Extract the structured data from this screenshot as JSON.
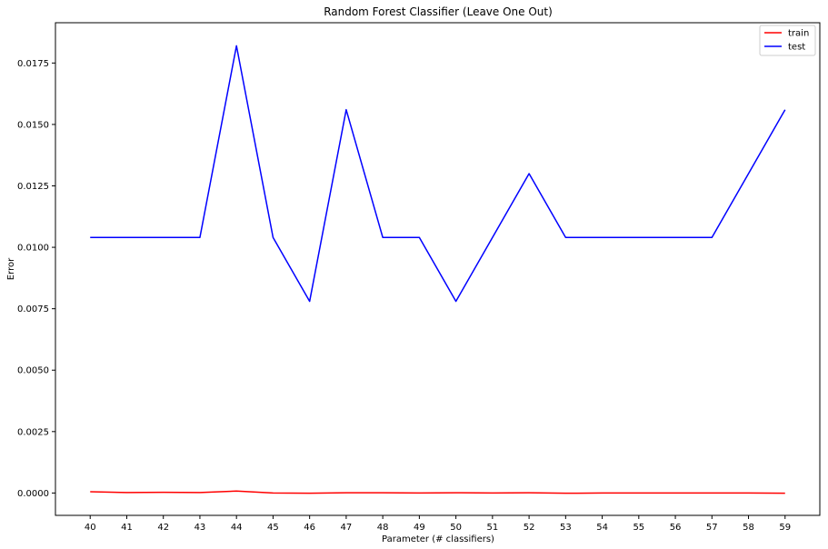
{
  "chart_data": {
    "type": "line",
    "title": "Random Forest Classifier (Leave One Out)",
    "xlabel": "Parameter (# classifiers)",
    "ylabel": "Error",
    "x": [
      40,
      41,
      42,
      43,
      44,
      45,
      46,
      47,
      48,
      49,
      50,
      51,
      52,
      53,
      54,
      55,
      56,
      57,
      58,
      59
    ],
    "xticks": [
      "40",
      "41",
      "42",
      "43",
      "44",
      "45",
      "46",
      "47",
      "48",
      "49",
      "50",
      "51",
      "52",
      "53",
      "54",
      "55",
      "56",
      "57",
      "58",
      "59"
    ],
    "yticks": [
      "0.0000",
      "0.0025",
      "0.0050",
      "0.0075",
      "0.0100",
      "0.0125",
      "0.0150",
      "0.0175"
    ],
    "ytick_values": [
      0,
      0.0025,
      0.005,
      0.0075,
      0.01,
      0.0125,
      0.015,
      0.0175
    ],
    "xlim": [
      39.05,
      59.95
    ],
    "ylim": [
      -0.00091,
      0.01914
    ],
    "grid": false,
    "legend_position": "top-right",
    "series": [
      {
        "name": "train",
        "color": "#ff0000",
        "values": [
          5e-05,
          2e-05,
          3e-05,
          2e-05,
          8e-05,
          0.0,
          -1e-05,
          1e-05,
          1e-05,
          0.0,
          1e-05,
          0.0,
          1e-05,
          -1e-05,
          0.0,
          0.0,
          0.0,
          0.0,
          0.0,
          -1e-05
        ]
      },
      {
        "name": "test",
        "color": "#0000ff",
        "values": [
          0.0104,
          0.0104,
          0.0104,
          0.0104,
          0.0182,
          0.0104,
          0.0078,
          0.0156,
          0.0104,
          0.0104,
          0.0078,
          0.0104,
          0.013,
          0.0104,
          0.0104,
          0.0104,
          0.0104,
          0.0104,
          0.013,
          0.0156
        ]
      }
    ]
  }
}
